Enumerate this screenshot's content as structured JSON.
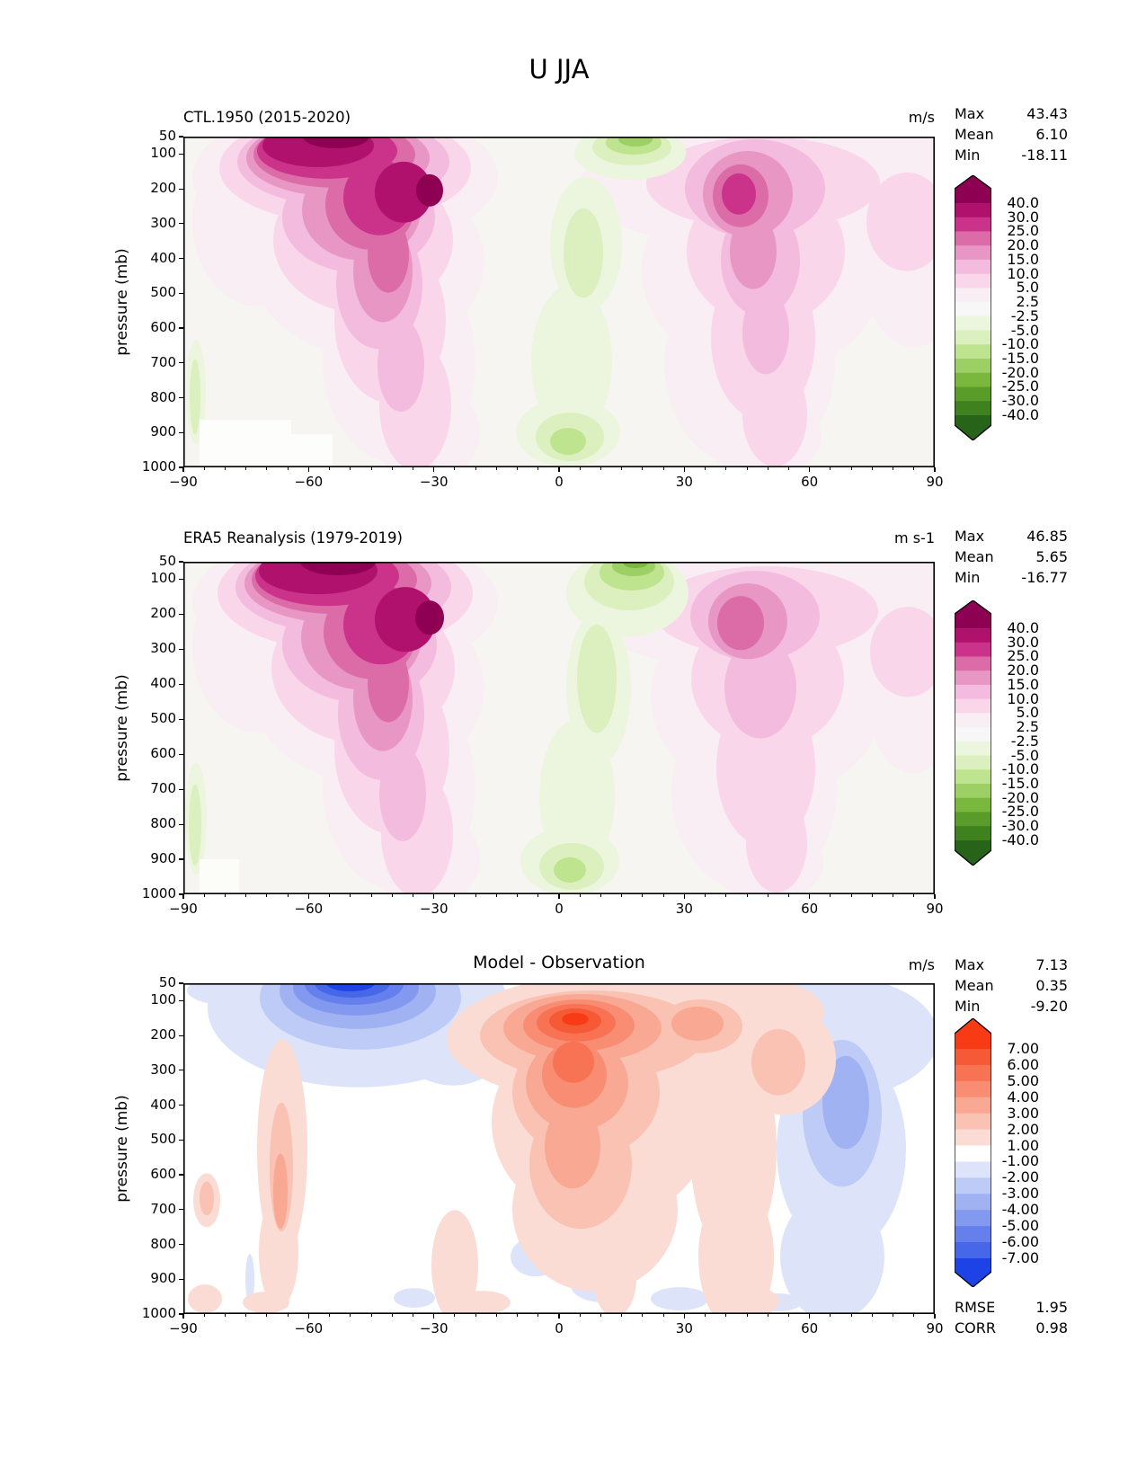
{
  "figure_title": "U JJA",
  "panels": [
    {
      "title": "CTL.1950 (2015-2020)",
      "units": "m/s",
      "stats": [
        [
          "Max",
          "43.43"
        ],
        [
          "Mean",
          "6.10"
        ],
        [
          "Min",
          "-18.11"
        ]
      ]
    },
    {
      "title": "ERA5 Reanalysis (1979-2019)",
      "units": "m s-1",
      "stats": [
        [
          "Max",
          "46.85"
        ],
        [
          "Mean",
          "5.65"
        ],
        [
          "Min",
          "-16.77"
        ]
      ]
    },
    {
      "title": "Model - Observation",
      "units": "m/s",
      "stats": [
        [
          "Max",
          "7.13"
        ],
        [
          "Mean",
          "0.35"
        ],
        [
          "Min",
          "-9.20"
        ]
      ],
      "footer_stats": [
        [
          "RMSE",
          "1.95"
        ],
        [
          "CORR",
          "0.98"
        ]
      ]
    }
  ],
  "axes": {
    "y_label": "pressure (mb)",
    "x_tick_labels": [
      "−90",
      "−60",
      "−30",
      "0",
      "30",
      "60",
      "90"
    ],
    "x_tick_values": [
      -90,
      -60,
      -30,
      0,
      30,
      60,
      90
    ],
    "x_minor_step_deg": 5,
    "y_ticks": [
      50,
      100,
      200,
      300,
      400,
      500,
      600,
      700,
      800,
      900,
      1000
    ],
    "x_range_deg": [
      -90,
      90
    ],
    "y_range_mb": [
      50,
      1000
    ]
  },
  "colorbars": [
    {
      "applies_to": "wind panels 1-2",
      "tick_labels": [
        "40.0",
        "30.0",
        "25.0",
        "20.0",
        "15.0",
        "10.0",
        "5.0",
        "2.5",
        "-2.5",
        "-5.0",
        "-10.0",
        "-15.0",
        "-20.0",
        "-25.0",
        "-30.0",
        "-40.0"
      ],
      "band_colors": [
        "#b0116d",
        "#cb3289",
        "#db6ca8",
        "#e897c4",
        "#f3bbdd",
        "#fad6ea",
        "#f9eef4",
        "#f7f7f7",
        "#ecf6df",
        "#dbf0be",
        "#bee48f",
        "#9ccf64",
        "#79b73d",
        "#599c29",
        "#3f811e"
      ],
      "over_color": "#8e0152",
      "under_color": "#276419"
    },
    {
      "applies_to": "difference panel 3",
      "tick_labels": [
        "7.00",
        "6.00",
        "5.00",
        "4.00",
        "3.00",
        "2.00",
        "1.00",
        "-1.00",
        "-2.00",
        "-3.00",
        "-4.00",
        "-5.00",
        "-6.00",
        "-7.00"
      ],
      "band_colors": [
        "#f65935",
        "#f77354",
        "#f88d73",
        "#f9a893",
        "#fac2b2",
        "#fbdcd4",
        "#ffffff",
        "#dde4fa",
        "#bfcbf7",
        "#a1b2f3",
        "#8399f0",
        "#6580ec",
        "#4767e9"
      ],
      "over_color": "#f93b15",
      "under_color": "#1d43e6"
    }
  ],
  "chart_data": [
    {
      "type": "contour",
      "panel": "CTL.1950 (2015-2020)",
      "variable": "zonal wind U",
      "season": "JJA",
      "units": "m/s",
      "x": "latitude_deg",
      "x_range": [
        -90,
        90
      ],
      "y": "pressure_mb",
      "y_range": [
        50,
        1000
      ],
      "levels": [
        -40,
        -30,
        -25,
        -20,
        -15,
        -10,
        -5,
        -2.5,
        2.5,
        5,
        10,
        15,
        20,
        25,
        30,
        40
      ],
      "stats": {
        "max": 43.43,
        "mean": 6.1,
        "min": -18.11
      },
      "features": [
        {
          "feature": "SH winter jet core",
          "lat": -30,
          "pressure_mb": 200,
          "value_ms": 43
        },
        {
          "feature": "stratospheric westerly band at top edge",
          "lat": -60,
          "pressure_mb": 50,
          "value_ms": 40
        },
        {
          "feature": "NH summer jet core",
          "lat": 42,
          "pressure_mb": 220,
          "value_ms": 25
        },
        {
          "feature": "tropical stratospheric easterlies",
          "lat": 18,
          "pressure_mb": 50,
          "value_ms": -16
        },
        {
          "feature": "equatorial low-level easterlies",
          "lat": 2,
          "pressure_mb": 900,
          "value_ms": -11
        },
        {
          "feature": "polar SH near-surface easterlies",
          "lat": -87,
          "pressure_mb": 800,
          "value_ms": -6
        }
      ]
    },
    {
      "type": "contour",
      "panel": "ERA5 Reanalysis (1979-2019)",
      "variable": "zonal wind U",
      "season": "JJA",
      "units": "m s-1",
      "x": "latitude_deg",
      "x_range": [
        -90,
        90
      ],
      "y": "pressure_mb",
      "y_range": [
        50,
        1000
      ],
      "levels": [
        -40,
        -30,
        -25,
        -20,
        -15,
        -10,
        -5,
        -2.5,
        2.5,
        5,
        10,
        15,
        20,
        25,
        30,
        40
      ],
      "stats": {
        "max": 46.85,
        "mean": 5.65,
        "min": -16.77
      },
      "features": [
        {
          "feature": "SH winter jet core",
          "lat": -30,
          "pressure_mb": 200,
          "value_ms": 46
        },
        {
          "feature": "stratospheric westerly band at top edge",
          "lat": -58,
          "pressure_mb": 50,
          "value_ms": 42
        },
        {
          "feature": "NH summer jet core",
          "lat": 42,
          "pressure_mb": 200,
          "value_ms": 25
        },
        {
          "feature": "tropical stratospheric easterlies column",
          "lat": 15,
          "pressure_mb": 80,
          "value_ms": -16
        },
        {
          "feature": "equatorial low-level easterlies",
          "lat": 2,
          "pressure_mb": 900,
          "value_ms": -10
        }
      ]
    },
    {
      "type": "contour",
      "panel": "Model - Observation",
      "variable": "zonal wind U bias",
      "season": "JJA",
      "units": "m/s",
      "x": "latitude_deg",
      "x_range": [
        -90,
        90
      ],
      "y": "pressure_mb",
      "y_range": [
        50,
        1000
      ],
      "levels": [
        -7,
        -6,
        -5,
        -4,
        -3,
        -2,
        -1,
        1,
        2,
        3,
        4,
        5,
        6,
        7
      ],
      "stats": {
        "max": 7.13,
        "mean": 0.35,
        "min": -9.2,
        "rmse": 1.95,
        "corr": 0.98
      },
      "features": [
        {
          "feature": "strong negative bias",
          "lat": -48,
          "pressure_mb": 70,
          "value_ms": -9
        },
        {
          "feature": "strong positive bias",
          "lat": 5,
          "pressure_mb": 150,
          "value_ms": 7
        },
        {
          "feature": "secondary positive bias lobe",
          "lat": 33,
          "pressure_mb": 160,
          "value_ms": 3
        },
        {
          "feature": "NH high-latitude negative bias column",
          "lat": 68,
          "pressure_mb": 350,
          "value_ms": -3
        },
        {
          "feature": "SH mid-latitude positive bias stripe",
          "lat": -66,
          "pressure_mb": 550,
          "value_ms": 2
        }
      ]
    }
  ]
}
